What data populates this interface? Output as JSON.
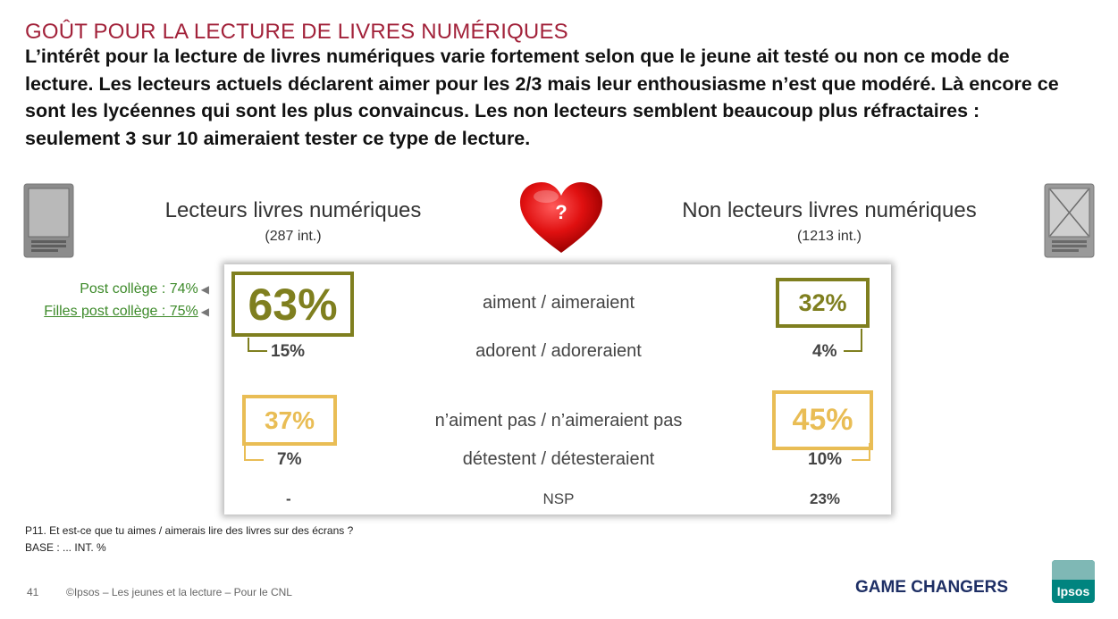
{
  "slide": {
    "title": "GOÛT POUR LA LECTURE DE LIVRES NUMÉRIQUES",
    "intro": "L’intérêt pour la lecture de livres numériques varie fortement selon que le jeune ait testé ou non ce mode de lecture. Les lecteurs actuels déclarent aimer pour les 2/3 mais leur enthousiasme n’est que modéré. Là encore ce sont les lycéennes qui sont les plus convaincus. Les non lecteurs semblent beaucoup plus réfractaires : seulement 3 sur 10 aimeraient tester ce type de lecture."
  },
  "groups": {
    "readers": {
      "title": "Lecteurs livres numériques",
      "base": "(287 int.)"
    },
    "non_readers": {
      "title": "Non lecteurs livres numériques",
      "base": "(1213 int.)"
    }
  },
  "heart_symbol": "?",
  "side_notes": [
    {
      "text": "Post collège : 74%"
    },
    {
      "text": "Filles post collège : 75%"
    }
  ],
  "rows": {
    "like": {
      "label": "aiment / aimeraient",
      "readers": "63%",
      "non_readers": "32%"
    },
    "adore": {
      "label": "adorent / adoreraient",
      "readers": "15%",
      "non_readers": "4%"
    },
    "dislike": {
      "label": "n’aiment pas / n’aimeraient pas",
      "readers": "37%",
      "non_readers": "45%"
    },
    "hate": {
      "label": "détestent / détesteraient",
      "readers": "7%",
      "non_readers": "10%"
    },
    "nsp": {
      "label": "NSP",
      "readers": "-",
      "non_readers": "23%"
    }
  },
  "footnote": {
    "question": "P11. Et est-ce que tu aimes / aimerais lire des livres sur des écrans ?",
    "base": "BASE : ... INT. %"
  },
  "footer": {
    "page_number": "41",
    "copyright": "©Ipsos – Les jeunes et la lecture – Pour le CNL",
    "tagline": "GAME CHANGERS",
    "logo_text": "Ipsos"
  },
  "colors": {
    "title": "#a2223a",
    "positive": "#7f7f1f",
    "negative": "#e9bd55",
    "note_green": "#3d8a2a",
    "brand": "#1e2f65"
  },
  "icons": [
    "ereader-icon",
    "heart-icon",
    "ereader-crossed-icon"
  ]
}
